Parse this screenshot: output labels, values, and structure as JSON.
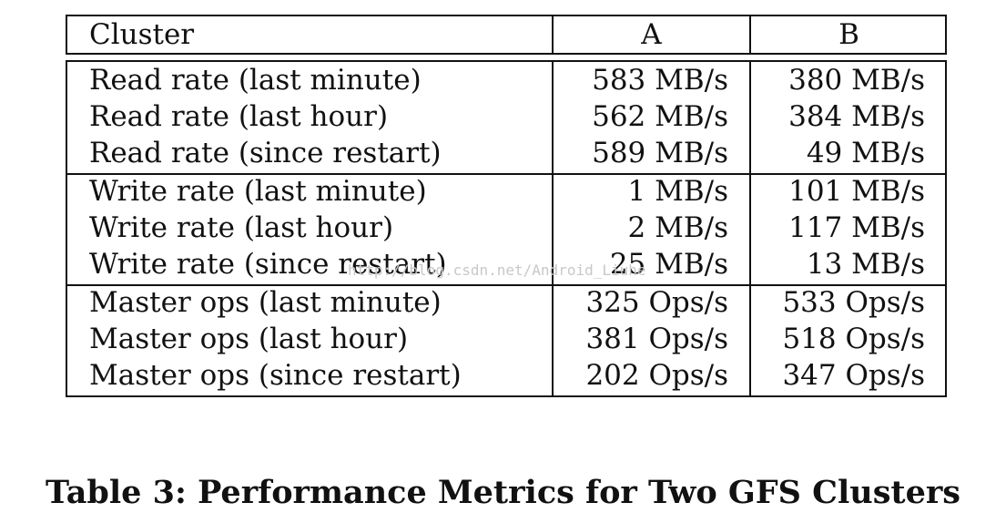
{
  "table": {
    "header": {
      "label": "Cluster",
      "col_a": "A",
      "col_b": "B"
    },
    "groups": [
      {
        "rows": [
          {
            "label": "Read rate (last minute)",
            "a": "583 MB/s",
            "b": "380 MB/s"
          },
          {
            "label": "Read rate (last hour)",
            "a": "562 MB/s",
            "b": "384 MB/s"
          },
          {
            "label": "Read rate (since restart)",
            "a": "589 MB/s",
            "b": "49 MB/s"
          }
        ]
      },
      {
        "rows": [
          {
            "label": "Write rate (last minute)",
            "a": "1 MB/s",
            "b": "101 MB/s"
          },
          {
            "label": "Write rate (last hour)",
            "a": "2 MB/s",
            "b": "117 MB/s"
          },
          {
            "label": "Write rate (since restart)",
            "a": "25 MB/s",
            "b": "13 MB/s"
          }
        ]
      },
      {
        "rows": [
          {
            "label": "Master ops (last minute)",
            "a": "325 Ops/s",
            "b": "533 Ops/s"
          },
          {
            "label": "Master ops (last hour)",
            "a": "381 Ops/s",
            "b": "518 Ops/s"
          },
          {
            "label": "Master ops (since restart)",
            "a": "202 Ops/s",
            "b": "347 Ops/s"
          }
        ]
      }
    ]
  },
  "watermark": "http://blog.csdn.net/Android_Liuhe",
  "caption": "Table 3: Performance Metrics for Two GFS Clusters"
}
